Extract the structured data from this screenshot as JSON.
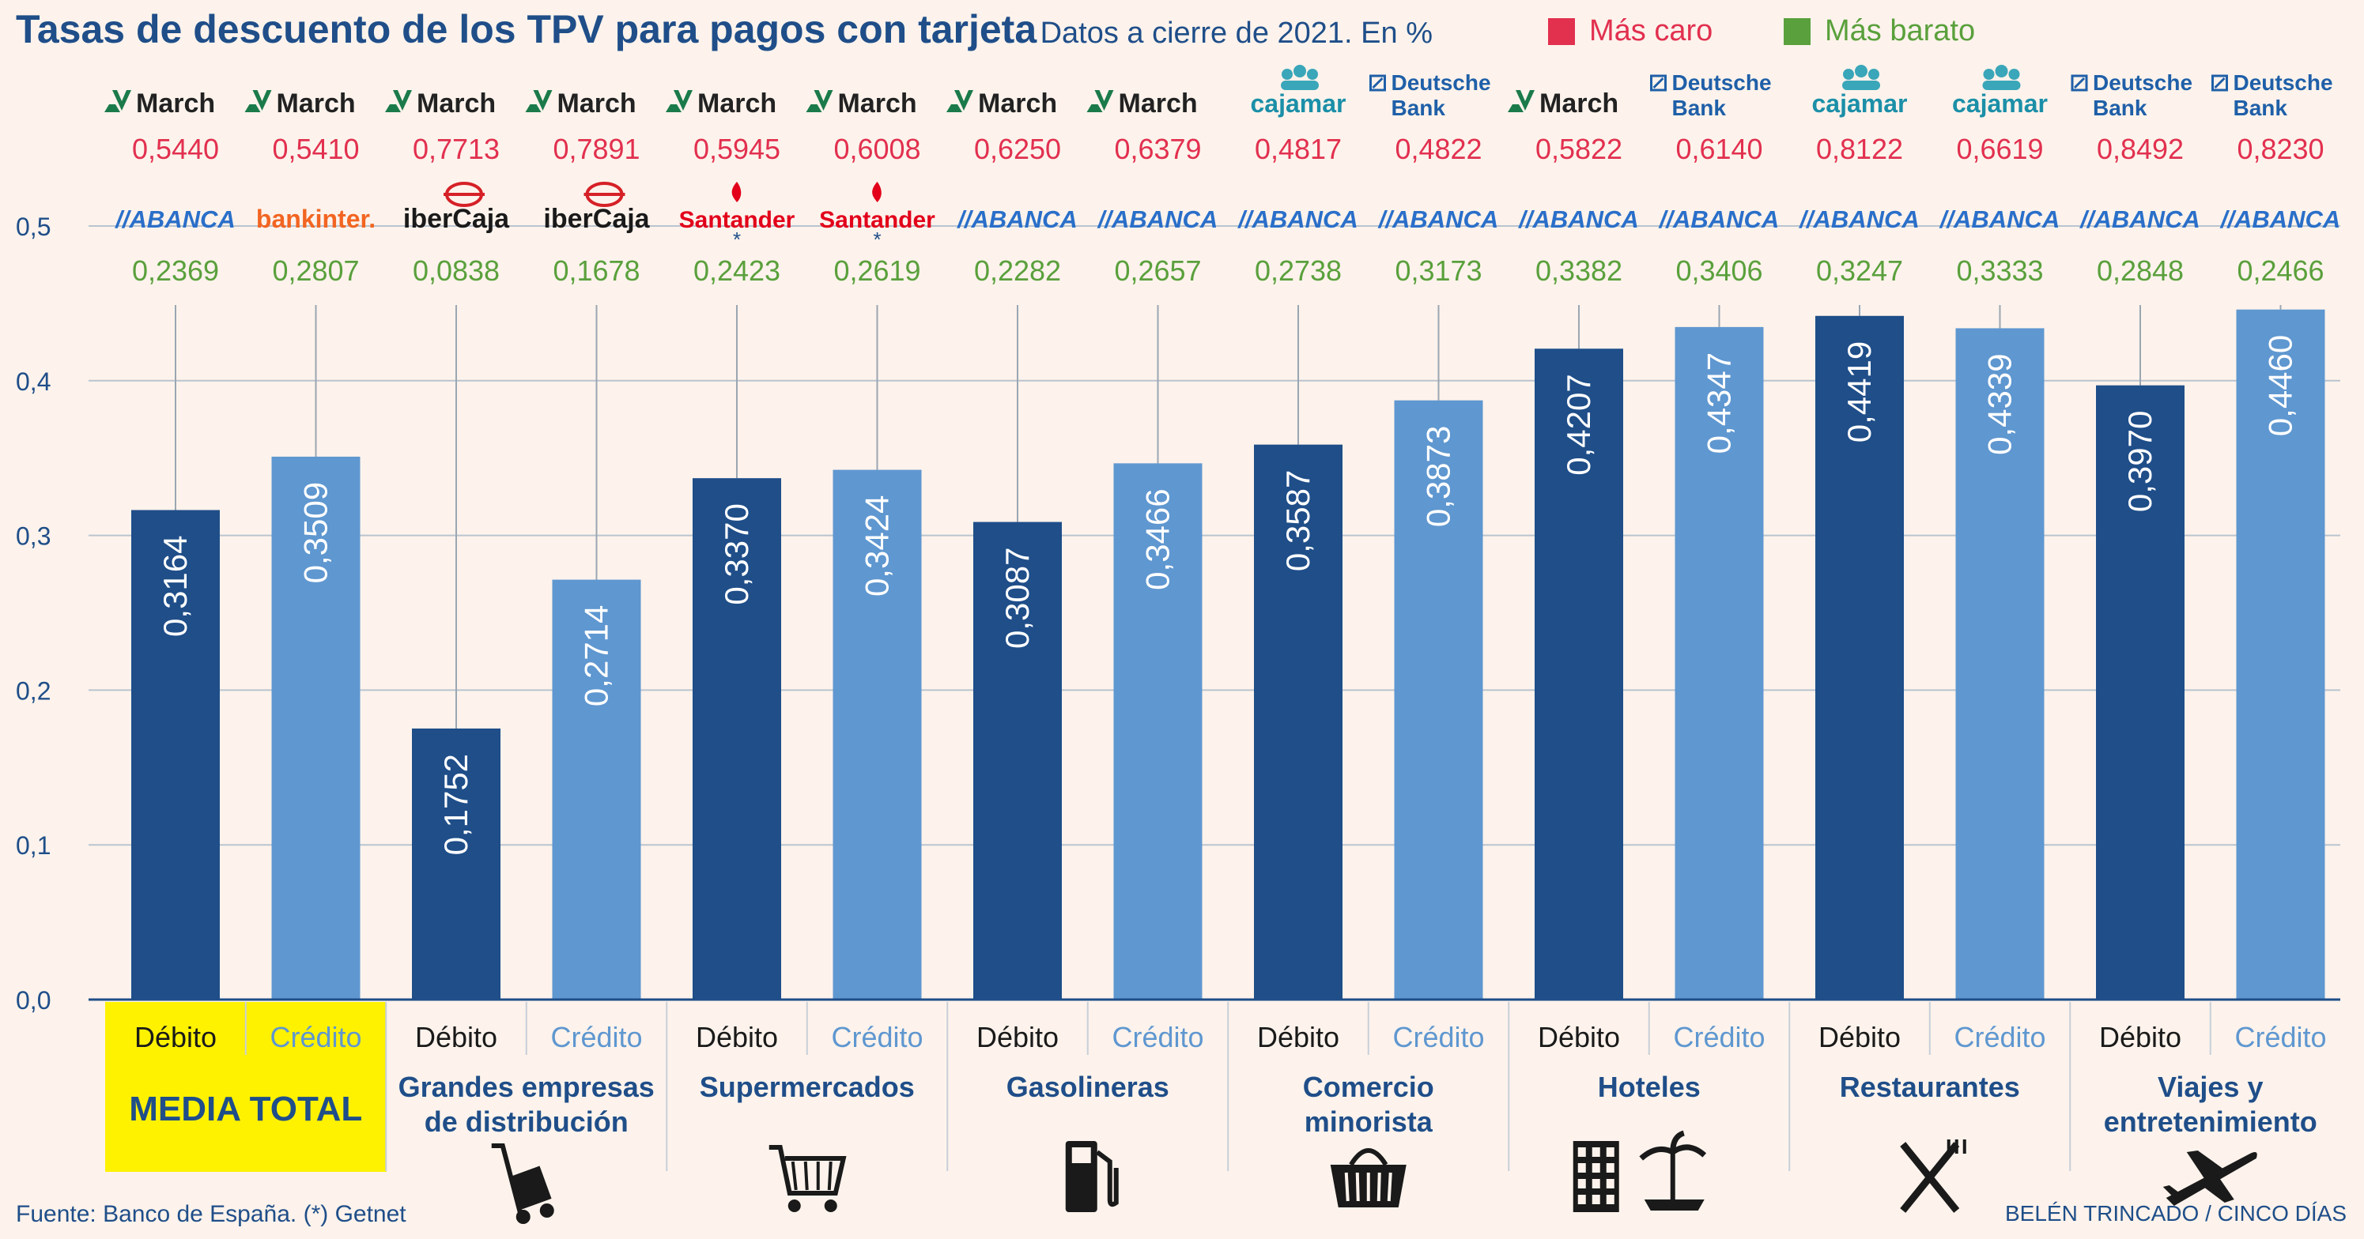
{
  "title": "Tasas de descuento de los TPV para pagos con tarjeta",
  "subtitle": "Datos a cierre de 2021. En %",
  "legend": [
    {
      "label": "Más caro",
      "color": "#e2304f"
    },
    {
      "label": "Más barato",
      "color": "#5aa03c"
    }
  ],
  "colors": {
    "debit_bar": "#1f4e89",
    "credit_bar": "#5f97d0",
    "expensive_text": "#e2304f",
    "cheap_text": "#5aa03c",
    "highlight_bg": "#fff200",
    "axis_text": "#1f4e89"
  },
  "chart_data": {
    "type": "bar",
    "ylim": [
      0,
      0.5
    ],
    "yticks": [
      "0,0",
      "0,1",
      "0,2",
      "0,3",
      "0,4",
      "0,5"
    ],
    "bar_labels": [
      "Débito",
      "Crédito"
    ],
    "bars": [
      {
        "group": "MEDIA TOTAL",
        "card": "Débito",
        "value": 0.3164,
        "label": "0,3164",
        "cheap_bank": "ABANCA",
        "cheap_value": "0,2369",
        "expensive_bank": "March",
        "expensive_value": "0,5440"
      },
      {
        "group": "MEDIA TOTAL",
        "card": "Crédito",
        "value": 0.3509,
        "label": "0,3509",
        "cheap_bank": "bankinter.",
        "cheap_value": "0,2807",
        "expensive_bank": "March",
        "expensive_value": "0,5410"
      },
      {
        "group": "Grandes empresas de distribución",
        "card": "Débito",
        "value": 0.1752,
        "label": "0,1752",
        "cheap_bank": "iberCaja",
        "cheap_value": "0,0838",
        "expensive_bank": "March",
        "expensive_value": "0,7713"
      },
      {
        "group": "Grandes empresas de distribución",
        "card": "Crédito",
        "value": 0.2714,
        "label": "0,2714",
        "cheap_bank": "iberCaja",
        "cheap_value": "0,1678",
        "expensive_bank": "March",
        "expensive_value": "0,7891"
      },
      {
        "group": "Supermercados",
        "card": "Débito",
        "value": 0.337,
        "label": "0,3370",
        "cheap_bank": "Santander",
        "cheap_value": "0,2423",
        "expensive_bank": "March",
        "expensive_value": "0,5945"
      },
      {
        "group": "Supermercados",
        "card": "Crédito",
        "value": 0.3424,
        "label": "0,3424",
        "cheap_bank": "Santander",
        "cheap_value": "0,2619",
        "expensive_bank": "March",
        "expensive_value": "0,6008"
      },
      {
        "group": "Gasolineras",
        "card": "Débito",
        "value": 0.3087,
        "label": "0,3087",
        "cheap_bank": "ABANCA",
        "cheap_value": "0,2282",
        "expensive_bank": "March",
        "expensive_value": "0,6250"
      },
      {
        "group": "Gasolineras",
        "card": "Crédito",
        "value": 0.3466,
        "label": "0,3466",
        "cheap_bank": "ABANCA",
        "cheap_value": "0,2657",
        "expensive_bank": "March",
        "expensive_value": "0,6379"
      },
      {
        "group": "Comercio minorista",
        "card": "Débito",
        "value": 0.3587,
        "label": "0,3587",
        "cheap_bank": "ABANCA",
        "cheap_value": "0,2738",
        "expensive_bank": "cajamar",
        "expensive_value": "0,4817"
      },
      {
        "group": "Comercio minorista",
        "card": "Crédito",
        "value": 0.3873,
        "label": "0,3873",
        "cheap_bank": "ABANCA",
        "cheap_value": "0,3173",
        "expensive_bank": "Deutsche Bank",
        "expensive_value": "0,4822"
      },
      {
        "group": "Hoteles",
        "card": "Débito",
        "value": 0.4207,
        "label": "0,4207",
        "cheap_bank": "ABANCA",
        "cheap_value": "0,3382",
        "expensive_bank": "March",
        "expensive_value": "0,5822"
      },
      {
        "group": "Hoteles",
        "card": "Crédito",
        "value": 0.4347,
        "label": "0,4347",
        "cheap_bank": "ABANCA",
        "cheap_value": "0,3406",
        "expensive_bank": "Deutsche Bank",
        "expensive_value": "0,6140"
      },
      {
        "group": "Restaurantes",
        "card": "Débito",
        "value": 0.4419,
        "label": "0,4419",
        "cheap_bank": "ABANCA",
        "cheap_value": "0,3247",
        "expensive_bank": "cajamar",
        "expensive_value": "0,8122"
      },
      {
        "group": "Restaurantes",
        "card": "Crédito",
        "value": 0.4339,
        "label": "0,4339",
        "cheap_bank": "ABANCA",
        "cheap_value": "0,3333",
        "expensive_bank": "cajamar",
        "expensive_value": "0,6619"
      },
      {
        "group": "Viajes y entretenimiento",
        "card": "Débito",
        "value": 0.397,
        "label": "0,3970",
        "cheap_bank": "ABANCA",
        "cheap_value": "0,2848",
        "expensive_bank": "Deutsche Bank",
        "expensive_value": "0,8492"
      },
      {
        "group": "Viajes y entretenimiento",
        "card": "Crédito",
        "value": 0.446,
        "label": "0,4460",
        "cheap_bank": "ABANCA",
        "cheap_value": "0,2466",
        "expensive_bank": "Deutsche Bank",
        "expensive_value": "0,8230"
      }
    ],
    "groups": [
      {
        "label": "MEDIA TOTAL",
        "icon": "none"
      },
      {
        "label": "Grandes empresas de distribución",
        "icon": "hand-truck-icon"
      },
      {
        "label": "Supermercados",
        "icon": "shopping-cart-icon"
      },
      {
        "label": "Gasolineras",
        "icon": "fuel-pump-icon"
      },
      {
        "label": "Comercio minorista",
        "icon": "shopping-basket-icon"
      },
      {
        "label": "Hoteles",
        "icon": "hotel-icon"
      },
      {
        "label": "Restaurantes",
        "icon": "fork-knife-icon"
      },
      {
        "label": "Viajes y entretenimiento",
        "icon": "airplane-icon"
      }
    ],
    "group_label_lines": [
      [
        "MEDIA TOTAL"
      ],
      [
        "Grandes empresas",
        "de distribución"
      ],
      [
        "Supermercados"
      ],
      [
        "Gasolineras"
      ],
      [
        "Comercio",
        "minorista"
      ],
      [
        "Hoteles"
      ],
      [
        "Restaurantes"
      ],
      [
        "Viajes y",
        "entretenimiento"
      ]
    ],
    "santander_note": "*"
  },
  "footer": {
    "source": "Fuente: Banco de España. (*) Getnet",
    "credit": "BELÉN TRINCADO / CINCO DÍAS"
  }
}
